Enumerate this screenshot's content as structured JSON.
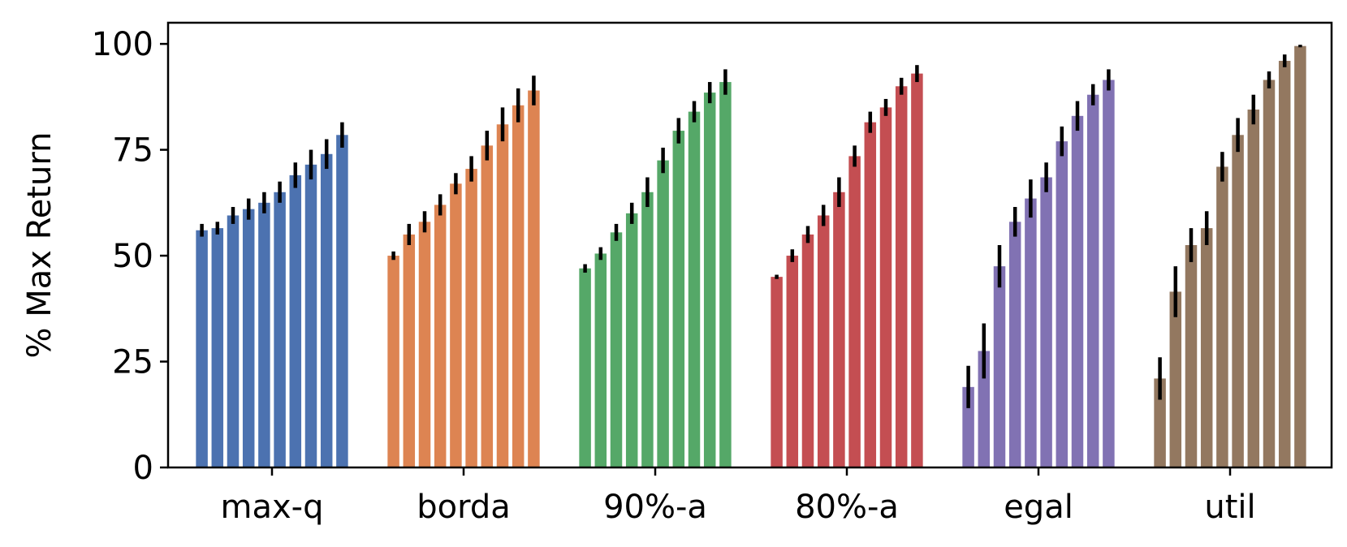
{
  "chart_data": {
    "type": "bar",
    "title": "",
    "xlabel": "",
    "ylabel": "% Max Return",
    "ylim": [
      0,
      105
    ],
    "yticks": [
      0,
      25,
      50,
      75,
      100
    ],
    "grid": false,
    "legend": "none",
    "groups": [
      {
        "label": "max-q",
        "color": "#4c72b0",
        "values": [
          56,
          56.5,
          59.5,
          61,
          62.5,
          65,
          69,
          71.5,
          74,
          78.5
        ],
        "errors": [
          1.5,
          1.5,
          2,
          2.5,
          2.5,
          2.5,
          3,
          3.5,
          3.5,
          3
        ]
      },
      {
        "label": "borda",
        "color": "#dd8452",
        "values": [
          50,
          55,
          58,
          62,
          67,
          70.5,
          76,
          81,
          85.5,
          89
        ],
        "errors": [
          1,
          2.5,
          2.5,
          2.5,
          2.5,
          3,
          3.5,
          4,
          4,
          3.5
        ]
      },
      {
        "label": "90%-a",
        "color": "#55a868",
        "values": [
          47,
          50.5,
          55.5,
          60,
          65,
          72.5,
          79.5,
          84,
          88.5,
          91
        ],
        "errors": [
          1,
          1.5,
          2,
          2.5,
          3.5,
          3,
          3,
          2.5,
          2.5,
          3
        ]
      },
      {
        "label": "80%-a",
        "color": "#c44e52",
        "values": [
          45,
          50,
          55,
          59.5,
          65,
          73.5,
          81.5,
          85,
          90,
          93
        ],
        "errors": [
          0.5,
          1.5,
          2,
          2.5,
          3.5,
          2.5,
          2.5,
          2,
          2,
          2
        ]
      },
      {
        "label": "egal",
        "color": "#8172b3",
        "values": [
          19,
          27.5,
          47.5,
          58,
          63.5,
          68.5,
          77,
          83,
          88,
          91.5
        ],
        "errors": [
          5,
          6.5,
          5,
          3.5,
          4.5,
          3.5,
          3.5,
          3.5,
          2.5,
          2.5
        ]
      },
      {
        "label": "util",
        "color": "#937860",
        "values": [
          21,
          41.5,
          52.5,
          56.5,
          71,
          78.5,
          84.5,
          91.5,
          96,
          99.5
        ],
        "errors": [
          5,
          6,
          4,
          4,
          3.5,
          4,
          3.5,
          2,
          1.5,
          0.3
        ]
      }
    ]
  }
}
